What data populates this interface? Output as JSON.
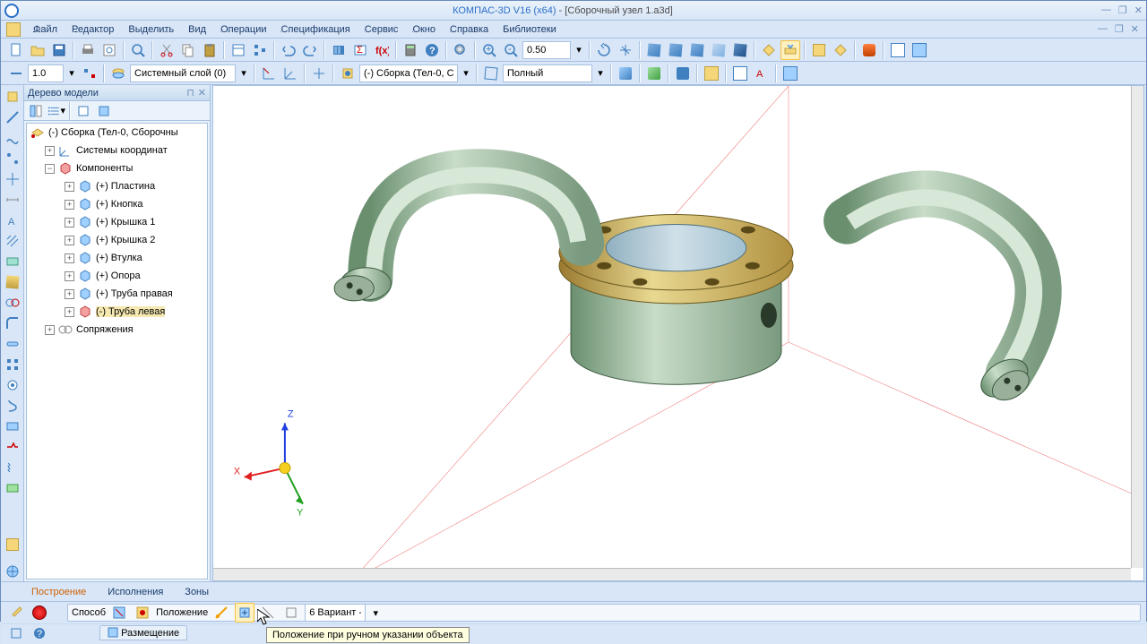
{
  "title": {
    "app": "КОМПАС-3D V16  (x64)",
    "doc": " - [Сборочный узел 1.a3d]"
  },
  "menus": [
    "Файл",
    "Редактор",
    "Выделить",
    "Вид",
    "Операции",
    "Спецификация",
    "Сервис",
    "Окно",
    "Справка",
    "Библиотеки"
  ],
  "tb1": {
    "zoom": "0.50"
  },
  "tb2": {
    "lw": "1.0",
    "layer": "Системный слой (0)",
    "assembly": "(-) Сборка (Тел-0, С",
    "wire": "Полный"
  },
  "tree": {
    "title": "Дерево модели",
    "root": "(-) Сборка (Тел-0, Сборочны",
    "n1": "Системы координат",
    "n2": "Компоненты",
    "c": [
      "(+) Пластина",
      "(+) Кнопка",
      "(+) Крышка 1",
      "(+) Крышка 2",
      "(+) Втулка",
      "(+) Опора",
      "(+) Труба правая",
      "(-) Труба левая"
    ],
    "n3": "Сопряжения"
  },
  "tabs": [
    "Построение",
    "Исполнения",
    "Зоны"
  ],
  "prop": {
    "sposob": "Способ",
    "poloz": "Положение",
    "variant": "6 Вариант -",
    "tab": "Размещение",
    "tooltip": "Положение при ручном указании объекта"
  },
  "axes": {
    "x": "X",
    "y": "Y",
    "z": "Z"
  }
}
